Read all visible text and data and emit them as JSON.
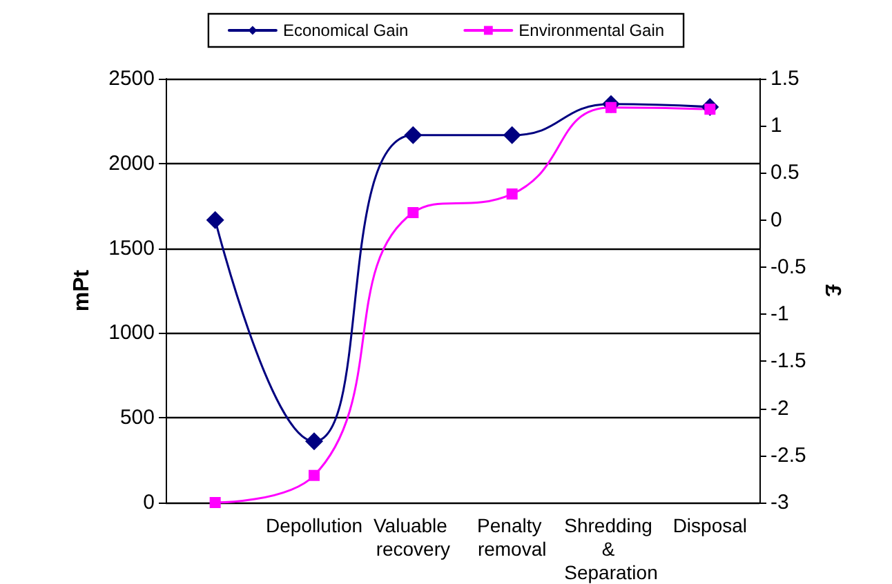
{
  "chart_data": {
    "type": "line",
    "categories": [
      null,
      "Depollution",
      "Valuable recovery",
      "Penalty removal",
      "Shredding & Separation",
      "Disposal"
    ],
    "ylabel": "mPt",
    "y2label": "£",
    "ylim": [
      0,
      2500
    ],
    "yticks": [
      0,
      500,
      1000,
      1500,
      2000,
      2500
    ],
    "y2lim": [
      -3,
      1.5
    ],
    "y2ticks": [
      -3,
      -2.5,
      -2,
      -1.5,
      -1,
      -0.5,
      0,
      0.5,
      1,
      1.5
    ],
    "series": [
      {
        "name": "Economical Gain",
        "color": "#000080",
        "axis": "y2",
        "marker": "diamond",
        "values": [
          0,
          -2.35,
          0.9,
          0.9,
          1.23,
          1.2
        ]
      },
      {
        "name": "Environmental Gain",
        "color": "#ff00ff",
        "marker": "square",
        "values": [
          0,
          160,
          1710,
          1820,
          2330,
          2320
        ]
      }
    ],
    "grid": "y",
    "legend": "top"
  }
}
